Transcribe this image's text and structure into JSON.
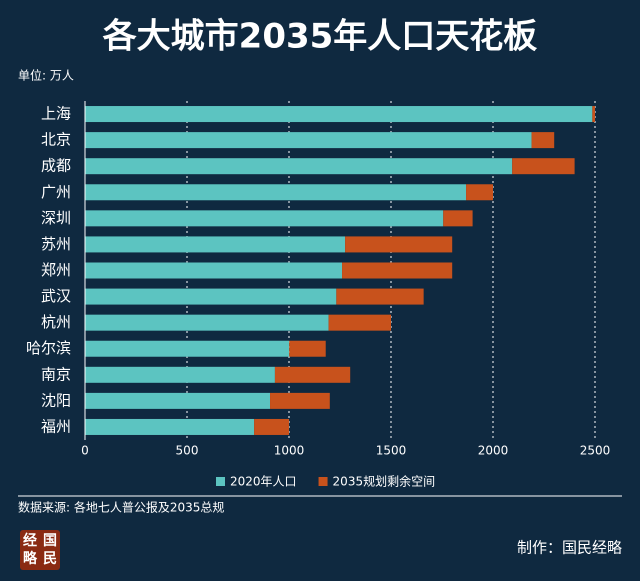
{
  "chart_data": {
    "type": "stacked-bar-horizontal",
    "title": "各大城市2035年人口天花板",
    "unit_label": "单位: 万人",
    "categories": [
      "上海",
      "北京",
      "成都",
      "广州",
      "深圳",
      "苏州",
      "郑州",
      "武汉",
      "杭州",
      "哈尔滨",
      "南京",
      "沈阳",
      "福州"
    ],
    "series": [
      {
        "name": "2020年人口",
        "color": "#5cc4c1",
        "values": [
          2487,
          2189,
          2094,
          1868,
          1756,
          1275,
          1260,
          1232,
          1194,
          1001,
          931,
          907,
          829
        ]
      },
      {
        "name": "2035规划剩余空间",
        "color": "#c8521c",
        "values": [
          13,
          111,
          306,
          132,
          144,
          525,
          540,
          428,
          306,
          179,
          369,
          293,
          171
        ]
      }
    ],
    "xlim": [
      0,
      2500
    ],
    "xticks": [
      0,
      500,
      1000,
      1500,
      2000,
      2500
    ],
    "grid": true,
    "source": "数据来源: 各地七人普公报及2035总规",
    "credit": "制作：国民经略",
    "logo": [
      "经",
      "国",
      "略",
      "民"
    ]
  }
}
